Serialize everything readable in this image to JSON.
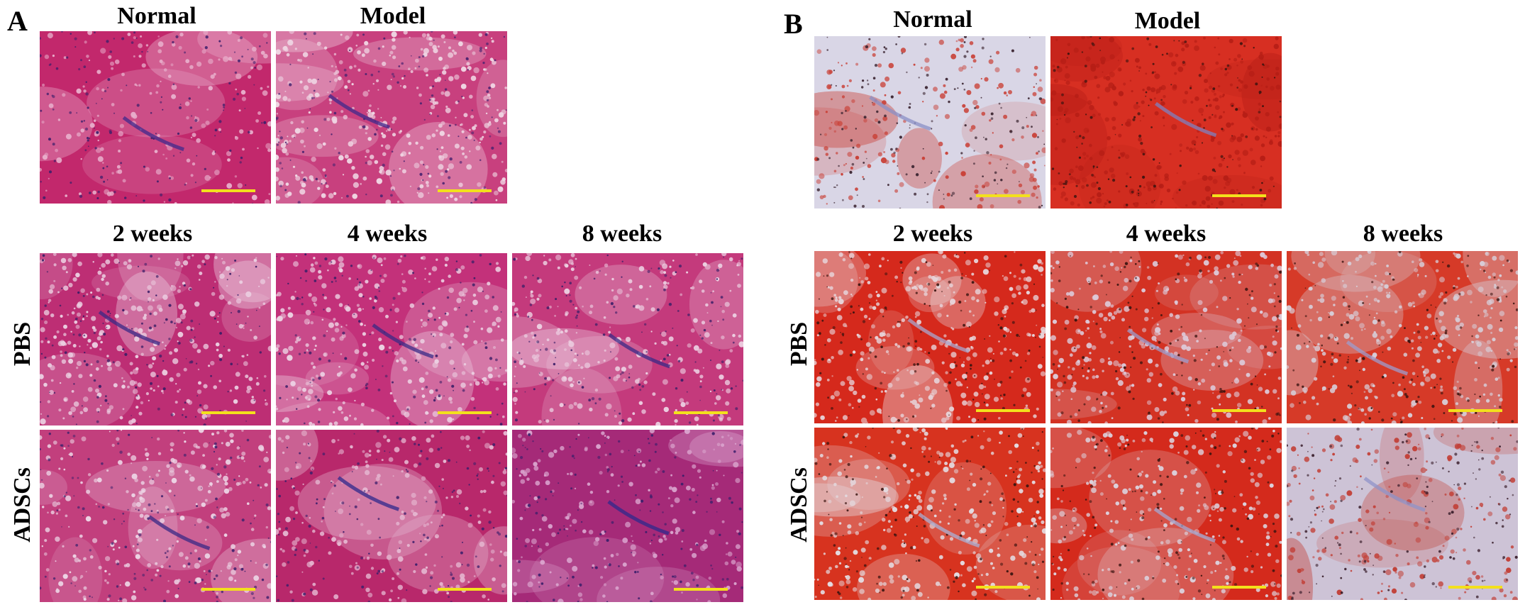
{
  "panels": [
    {
      "letter": "A",
      "stain": "he",
      "columns": [
        "Normal",
        "Model",
        "2 weeks",
        "4 weeks",
        "8 weeks"
      ],
      "rows": [
        "PBS",
        "ADSCs"
      ],
      "tiles": [
        {
          "id": "A-normal",
          "base": "#c2286c",
          "cells": "#e8aecb",
          "nuclei": "#3b1f6b",
          "vessel": "#3f2a8c",
          "density": 0.25
        },
        {
          "id": "A-model",
          "base": "#c8407e",
          "cells": "#efd4e2",
          "nuclei": "#4a2470",
          "vessel": "#3f2a8c",
          "density": 0.9
        },
        {
          "id": "A-pbs-2w",
          "base": "#bd2e74",
          "cells": "#ebcde0",
          "nuclei": "#3a1e66",
          "vessel": "#3a2a86",
          "density": 0.8
        },
        {
          "id": "A-pbs-4w",
          "base": "#c3317a",
          "cells": "#eccfe1",
          "nuclei": "#3d2068",
          "vessel": "#3a2a86",
          "density": 0.65
        },
        {
          "id": "A-pbs-8w",
          "base": "#c43a7c",
          "cells": "#eccfe1",
          "nuclei": "#3d2068",
          "vessel": "#3a2a86",
          "density": 0.5
        },
        {
          "id": "A-adscs-2w",
          "base": "#c23f7d",
          "cells": "#ecd3e4",
          "nuclei": "#43246e",
          "vessel": "#3a2a86",
          "density": 0.55
        },
        {
          "id": "A-adscs-4w",
          "base": "#b8286b",
          "cells": "#e5b6d0",
          "nuclei": "#3b1f6b",
          "vessel": "#2f2a8c",
          "density": 0.35
        },
        {
          "id": "A-adscs-8w",
          "base": "#a52a78",
          "cells": "#d9a2cc",
          "nuclei": "#3b1f6b",
          "vessel": "#2f2a8c",
          "density": 0.3
        }
      ]
    },
    {
      "letter": "B",
      "stain": "oil-red-o",
      "columns": [
        "Normal",
        "Model",
        "2 weeks",
        "4 weeks",
        "8 weeks"
      ],
      "rows": [
        "PBS",
        "ADSCs"
      ],
      "tiles": [
        {
          "id": "B-normal",
          "base": "#d9d6e6",
          "cells": "#c9433a",
          "nuclei": "#3a2430",
          "vessel": "#8a8fc6",
          "density": 0.25
        },
        {
          "id": "B-model",
          "base": "#d72f22",
          "cells": "#b61e16",
          "nuclei": "#3a1410",
          "vessel": "#7e82c0",
          "density": 0.9
        },
        {
          "id": "B-pbs-2w",
          "base": "#d5291c",
          "cells": "#e7d3d8",
          "nuclei": "#3a1410",
          "vessel": "#a7a7cf",
          "density": 0.8
        },
        {
          "id": "B-pbs-4w",
          "base": "#d33223",
          "cells": "#ddc9d8",
          "nuclei": "#3a1410",
          "vessel": "#9c9ccc",
          "density": 0.7
        },
        {
          "id": "B-pbs-8w",
          "base": "#d63a28",
          "cells": "#d7ccd6",
          "nuclei": "#3a1410",
          "vessel": "#9c9ccc",
          "density": 0.75
        },
        {
          "id": "B-adscs-2w",
          "base": "#d7331f",
          "cells": "#e4dde3",
          "nuclei": "#3a1410",
          "vessel": "#aab0d4",
          "density": 0.6
        },
        {
          "id": "B-adscs-4w",
          "base": "#d42a1c",
          "cells": "#dcd2dd",
          "nuclei": "#3a1410",
          "vessel": "#a3a8d2",
          "density": 0.55
        },
        {
          "id": "B-adscs-8w",
          "base": "#cdc3d6",
          "cells": "#c2423a",
          "nuclei": "#3a1f2c",
          "vessel": "#8f93c8",
          "density": 0.3
        }
      ]
    }
  ],
  "colors": {
    "scale_bar": "#f3e01c",
    "background": "#ffffff"
  }
}
